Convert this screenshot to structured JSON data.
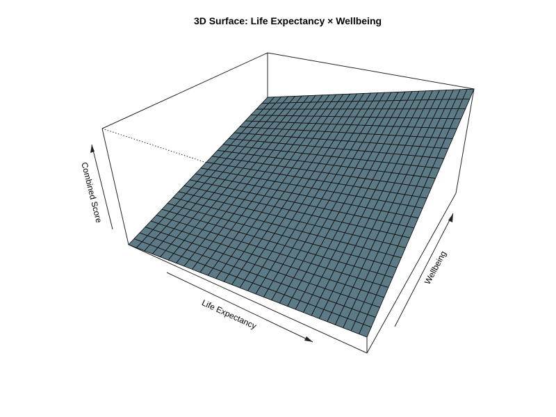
{
  "chart_data": {
    "type": "surface",
    "title": "3D Surface: Life Expectancy × Wellbeing",
    "xlabel": "Life Expectancy",
    "ylabel": "Wellbeing",
    "zlabel": "Combined Score",
    "grid": {
      "x_cells": 30,
      "y_cells": 25
    },
    "surface": {
      "model": "linear",
      "description": "Combined score increases linearly with both life expectancy and wellbeing",
      "z_at_corners": {
        "x0_y0": 0.0,
        "x1_y0": 0.2,
        "x0_y1": 0.8,
        "x1_y1": 1.0
      }
    },
    "colors": {
      "surface_fill": "#5d7b87",
      "grid_line": "#111111",
      "box_line": "#222222"
    },
    "show_tick_labels": false,
    "axis_arrows": true
  }
}
